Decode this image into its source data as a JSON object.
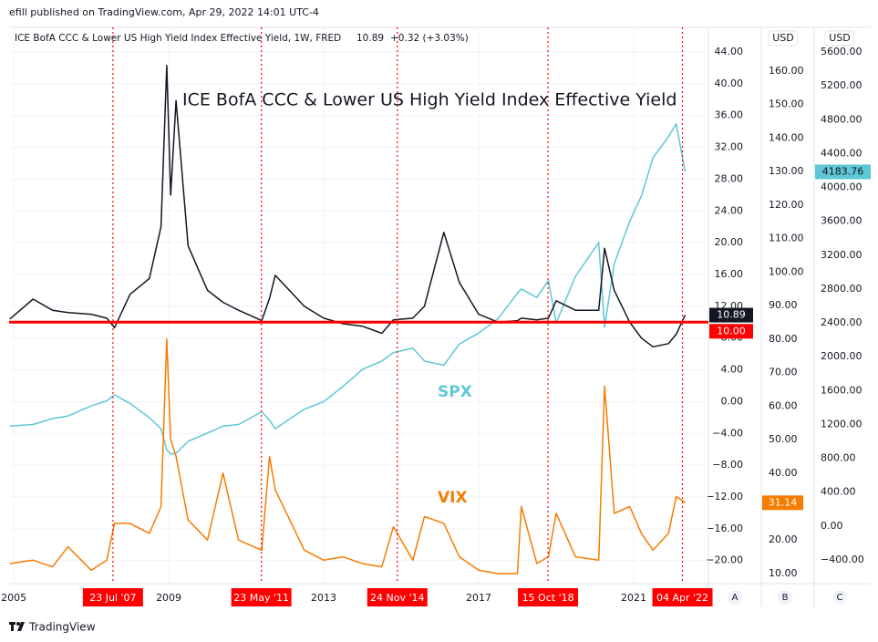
{
  "header": "efill published on TradingView.com, Apr 29, 2022 14:01 UTC-4",
  "footer": "TradingView",
  "chart_data": {
    "type": "line",
    "legend": {
      "text": "ICE BofA CCC & Lower US High Yield Index Effective Yield, 1W, FRED",
      "change": "+0.32 (+3.03%)"
    },
    "axis_units": [
      "USD",
      "USD"
    ],
    "axis_names": [
      "A",
      "B",
      "C"
    ],
    "x": [
      2004.9,
      2005.5,
      2006.0,
      2006.4,
      2007.0,
      2007.4,
      2007.6,
      2008.0,
      2008.5,
      2008.8,
      2008.95,
      2009.05,
      2009.19,
      2009.5,
      2010.0,
      2010.4,
      2010.8,
      2011.4,
      2011.6,
      2011.75,
      2012.5,
      2013.0,
      2013.5,
      2014.0,
      2014.5,
      2014.8,
      2015.3,
      2015.6,
      2016.1,
      2016.5,
      2017.0,
      2017.5,
      2018.0,
      2018.1,
      2018.5,
      2018.8,
      2019.0,
      2019.5,
      2020.1,
      2020.25,
      2020.5,
      2020.9,
      2021.2,
      2021.5,
      2021.9,
      2022.1,
      2022.33
    ],
    "xlim": [
      2004.88,
      2022.93
    ],
    "xticks": [
      2005,
      2009,
      2013,
      2017,
      2021
    ],
    "grid": true,
    "series": [
      {
        "name": "ICE BofA CCC & Lower US High Yield Index Effective Yield",
        "color": "#131722",
        "axis": "y",
        "values": [
          10.4,
          12.9,
          11.5,
          11.2,
          11.0,
          10.5,
          9.3,
          13.5,
          15.5,
          22,
          42.3,
          26,
          37.9,
          19.6,
          14,
          12.5,
          11.5,
          10.2,
          13,
          15.9,
          12,
          10.5,
          9.8,
          9.5,
          8.6,
          10.3,
          10.5,
          12,
          21.3,
          15,
          11,
          10,
          10.2,
          10.5,
          10.3,
          10.5,
          12.7,
          11.5,
          11.5,
          19.3,
          14,
          10,
          8,
          6.9,
          7.3,
          8.5,
          10.89
        ]
      },
      {
        "name": "SPX",
        "color": "#5fc7d6",
        "axis": "y3",
        "values": [
          1180,
          1200,
          1270,
          1300,
          1420,
          1480,
          1550,
          1450,
          1280,
          1150,
          900,
          850,
          860,
          1000,
          1100,
          1180,
          1200,
          1350,
          1250,
          1150,
          1380,
          1470,
          1650,
          1850,
          1950,
          2050,
          2100,
          1950,
          1900,
          2150,
          2280,
          2450,
          2750,
          2800,
          2700,
          2900,
          2400,
          2950,
          3350,
          2350,
          3100,
          3600,
          3900,
          4350,
          4600,
          4750,
          4183.76
        ]
      },
      {
        "name": "VIX",
        "color": "#f57c00",
        "axis": "y2",
        "values": [
          13,
          14,
          12,
          18,
          11,
          14,
          25,
          25,
          22,
          30,
          80,
          50,
          45,
          26,
          20,
          40,
          20,
          17,
          45,
          35,
          17,
          14,
          15,
          13,
          12,
          24,
          14,
          27,
          25,
          15,
          11,
          10,
          10,
          30,
          13,
          15,
          28,
          15,
          14,
          66,
          28,
          30,
          22,
          17,
          22,
          33,
          31.14
        ]
      }
    ],
    "ylim": [
      -22.9,
      47.1
    ],
    "yticks": [
      {
        "value": -20,
        "label": "−20.00"
      },
      {
        "value": -16,
        "label": "−16.00"
      },
      {
        "value": -12,
        "label": "−12.00"
      },
      {
        "value": -8,
        "label": "−8.00"
      },
      {
        "value": -4,
        "label": "−4.00"
      },
      {
        "value": 0,
        "label": "0.00"
      },
      {
        "value": 4,
        "label": "4.00"
      },
      {
        "value": 8,
        "label": "8.00"
      },
      {
        "value": 12,
        "label": "12.00"
      },
      {
        "value": 16,
        "label": "16.00"
      },
      {
        "value": 20,
        "label": "20.00"
      },
      {
        "value": 24,
        "label": "24.00"
      },
      {
        "value": 28,
        "label": "28.00"
      },
      {
        "value": 32,
        "label": "32.00"
      },
      {
        "value": 36,
        "label": "36.00"
      },
      {
        "value": 40,
        "label": "40.00"
      },
      {
        "value": 44,
        "label": "44.00"
      }
    ],
    "y2lim": [
      7.0,
      173.07
    ],
    "y2ticks": [
      {
        "value": 10,
        "label": "10.00"
      },
      {
        "value": 20,
        "label": "20.00"
      },
      {
        "value": 30,
        "label": "30.00"
      },
      {
        "value": 40,
        "label": "40.00"
      },
      {
        "value": 50,
        "label": "50.00"
      },
      {
        "value": 60,
        "label": "60.00"
      },
      {
        "value": 70,
        "label": "70.00"
      },
      {
        "value": 80,
        "label": "80.00"
      },
      {
        "value": 90,
        "label": "90.00"
      },
      {
        "value": 100,
        "label": "100.00"
      },
      {
        "value": 110,
        "label": "110.00"
      },
      {
        "value": 120,
        "label": "120.00"
      },
      {
        "value": 130,
        "label": "130.00"
      },
      {
        "value": 140,
        "label": "140.00"
      },
      {
        "value": 150,
        "label": "150.00"
      },
      {
        "value": 160,
        "label": "160.00"
      }
    ],
    "y3lim": [
      -680,
      5891
    ],
    "y3ticks": [
      {
        "value": -400,
        "label": "−400.00"
      },
      {
        "value": 0,
        "label": "0.00"
      },
      {
        "value": 400,
        "label": "400.00"
      },
      {
        "value": 800,
        "label": "800.00"
      },
      {
        "value": 1200,
        "label": "1200.00"
      },
      {
        "value": 1600,
        "label": "1600.00"
      },
      {
        "value": 2000,
        "label": "2000.00"
      },
      {
        "value": 2400,
        "label": "2400.00"
      },
      {
        "value": 2800,
        "label": "2800.00"
      },
      {
        "value": 3200,
        "label": "3200.00"
      },
      {
        "value": 3600,
        "label": "3600.00"
      },
      {
        "value": 4000,
        "label": "4000.00"
      },
      {
        "value": 4400,
        "label": "4400.00"
      },
      {
        "value": 4800,
        "label": "4800.00"
      },
      {
        "value": 5200,
        "label": "5200.00"
      },
      {
        "value": 5600,
        "label": "5600.00"
      }
    ],
    "hline": {
      "value": 10,
      "label": "10.00",
      "color": "#ff0000"
    },
    "markers": [
      {
        "label": "23 Jul '07",
        "x": 2007.56
      },
      {
        "label": "23 May '11",
        "x": 2011.39
      },
      {
        "label": "24 Nov '14",
        "x": 2014.9
      },
      {
        "label": "15 Oct '18",
        "x": 2018.79
      },
      {
        "label": "04 Apr '22",
        "x": 2022.26
      }
    ],
    "marker_color": "#ff0000"
  }
}
